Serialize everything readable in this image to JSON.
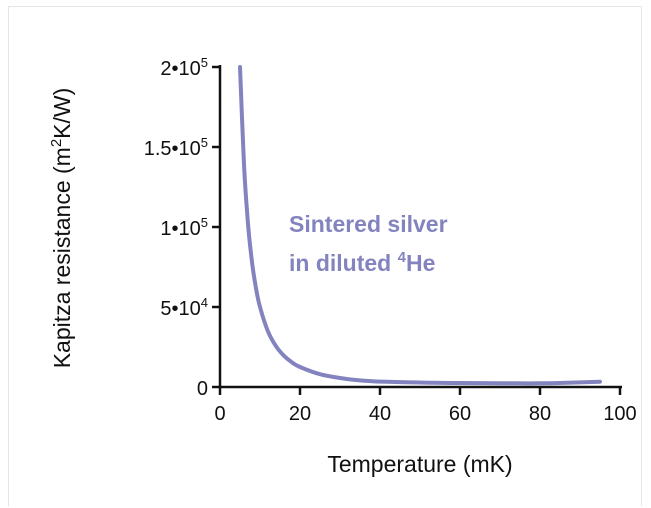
{
  "chart_data": {
    "type": "line",
    "xlabel": "Temperature (mK)",
    "ylabel": {
      "prefix": "Kapitza resistance (m",
      "sup": "2",
      "suffix": "K/W)"
    },
    "xlim": [
      0,
      100
    ],
    "ylim": [
      0,
      200000
    ],
    "x_ticks": [
      0,
      20,
      40,
      60,
      80,
      100
    ],
    "x_tick_labels": [
      "0",
      "20",
      "40",
      "60",
      "80",
      "100"
    ],
    "y_ticks": [
      0,
      50000,
      100000,
      150000,
      200000
    ],
    "y_tick_labels": [
      {
        "base": "0",
        "exp": ""
      },
      {
        "base": "5•10",
        "exp": "4"
      },
      {
        "base": "1•10",
        "exp": "5"
      },
      {
        "base": "1.5•10",
        "exp": "5"
      },
      {
        "base": "2•10",
        "exp": "5"
      }
    ],
    "grid": false,
    "series": [
      {
        "color": "#8384bf",
        "x": [
          5,
          6,
          7,
          8,
          9,
          10,
          12,
          14,
          16,
          18,
          20,
          25,
          30,
          35,
          40,
          50,
          60,
          70,
          80,
          90,
          95
        ],
        "y": [
          200000,
          139000,
          102000,
          78100,
          61700,
          50000,
          34700,
          25500,
          19500,
          15400,
          12500,
          8000,
          5600,
          4100,
          3400,
          2800,
          2500,
          2400,
          2300,
          2900,
          3300
        ]
      }
    ],
    "annotation": {
      "line1": "Sintered silver",
      "line2_prefix": "in diluted ",
      "line2_sup": "4",
      "line2_suffix": "He",
      "color": "#8384bf"
    }
  }
}
